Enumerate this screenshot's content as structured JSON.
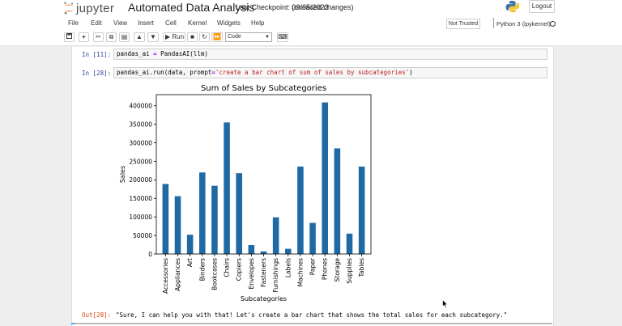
{
  "header": {
    "logo_text": "jupyter",
    "notebook_name": "Automated Data Analysis",
    "checkpoint": "Last Checkpoint: 09/05/2023",
    "unsaved": "(unsaved changes)",
    "logout_label": "Logout"
  },
  "menu": [
    "File",
    "Edit",
    "View",
    "Insert",
    "Cell",
    "Kernel",
    "Widgets",
    "Help"
  ],
  "trust_label": "Not Trusted",
  "kernel_name": "Python 3 (ipykernel)",
  "toolbar": {
    "run_label": "Run",
    "cell_type": "Code"
  },
  "cells": [
    {
      "prompt": "In [11]:",
      "code_parts": [
        "pandas_ai ",
        "=",
        " PandasAI(llm)"
      ]
    },
    {
      "prompt": "In [28]:",
      "code_parts": [
        "pandas_ai.run(data, prompt",
        "=",
        "'create a bar chart of sum of sales by subcategories'",
        ")"
      ]
    }
  ],
  "output": {
    "prompt": "Out[28]:",
    "text": "\"Sure, I can help you with that! Let's create a bar chart that shows the total sales for each subcategory.\""
  },
  "chart_data": {
    "type": "bar",
    "title": "Sum of Sales by Subcategories",
    "xlabel": "Subcategories",
    "ylabel": "Sales",
    "ylim": [
      0,
      430000
    ],
    "yticks": [
      0,
      50000,
      100000,
      150000,
      200000,
      250000,
      300000,
      350000,
      400000
    ],
    "categories": [
      "Accessories",
      "Appliances",
      "Art",
      "Binders",
      "Bookcases",
      "Chairs",
      "Copiers",
      "Envelopes",
      "Fasteners",
      "Furnishings",
      "Labels",
      "Machines",
      "Paper",
      "Phones",
      "Storage",
      "Supplies",
      "Tables"
    ],
    "values": [
      189000,
      156000,
      52000,
      220000,
      184000,
      355000,
      218000,
      24000,
      7000,
      99000,
      14000,
      236000,
      84000,
      409000,
      285000,
      55000,
      236000
    ],
    "bar_color": "#1f6aa5"
  }
}
